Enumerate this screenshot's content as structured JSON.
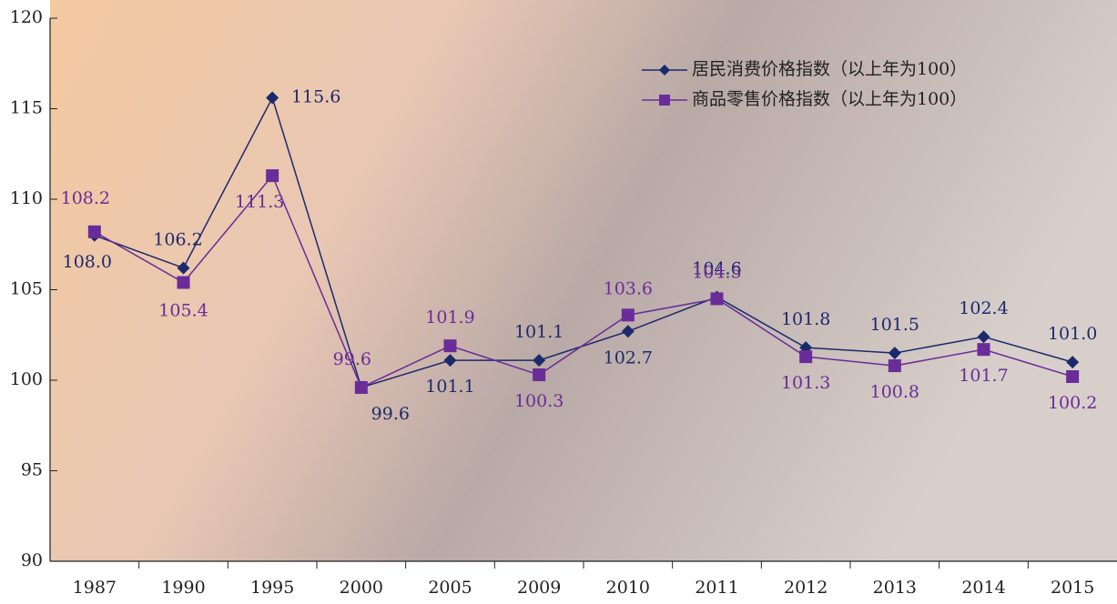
{
  "chart_data": {
    "type": "line",
    "categories": [
      "1987",
      "1990",
      "1995",
      "2000",
      "2005",
      "2009",
      "2010",
      "2011",
      "2012",
      "2013",
      "2014",
      "2015"
    ],
    "series": [
      {
        "name": "居民消费价格指数（以上年为100）",
        "color": "#1b2a6b",
        "marker": "diamond",
        "values": [
          108.0,
          106.2,
          115.6,
          99.6,
          101.1,
          101.1,
          102.7,
          104.6,
          101.8,
          101.5,
          102.4,
          101.0
        ],
        "value_labels": [
          "108.0",
          "106.2",
          "115.6",
          "99.6",
          "101.1",
          "101.1",
          "102.7",
          "104.6",
          "101.8",
          "101.5",
          "102.4",
          "101.0"
        ]
      },
      {
        "name": "商品零售价格指数（以上年为100）",
        "color": "#6a2c98",
        "marker": "square",
        "values": [
          108.2,
          105.4,
          111.3,
          99.6,
          101.9,
          100.3,
          103.6,
          104.5,
          101.3,
          100.8,
          101.7,
          100.2
        ],
        "value_labels": [
          "108.2",
          "105.4",
          "111.3",
          "99.6",
          "101.9",
          "100.3",
          "103.6",
          "104.5",
          "101.3",
          "100.8",
          "101.7",
          "100.2"
        ]
      }
    ],
    "ylim": [
      90,
      120
    ],
    "yticks": [
      90,
      95,
      100,
      105,
      110,
      115,
      120
    ],
    "grid": false,
    "legend": "top-right"
  }
}
